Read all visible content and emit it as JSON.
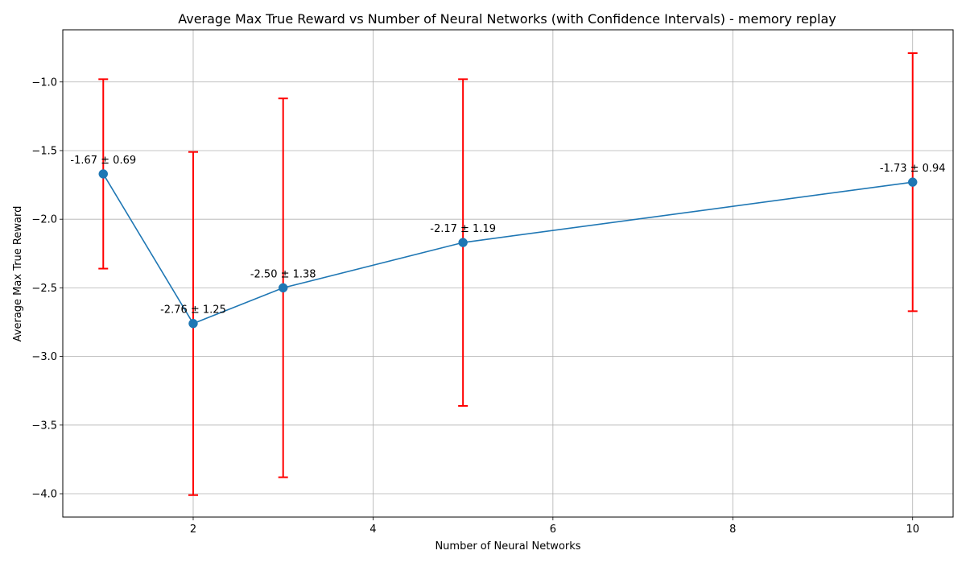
{
  "chart_data": {
    "type": "line",
    "title": "Average Max True Reward vs Number of Neural Networks (with Confidence Intervals) - memory replay",
    "xlabel": "Number of Neural Networks",
    "ylabel": "Average Max True Reward",
    "xlim": [
      0.55,
      10.45
    ],
    "ylim": [
      -4.17,
      -0.62
    ],
    "xticks": [
      2,
      4,
      6,
      8,
      10
    ],
    "xtick_labels": [
      "2",
      "4",
      "6",
      "8",
      "10"
    ],
    "yticks": [
      -4.0,
      -3.5,
      -3.0,
      -2.5,
      -2.0,
      -1.5,
      -1.0
    ],
    "ytick_labels": [
      "−4.0",
      "−3.5",
      "−3.0",
      "−2.5",
      "−2.0",
      "−1.5",
      "−1.0"
    ],
    "grid": true,
    "series": [
      {
        "x": [
          1,
          2,
          3,
          5,
          10
        ],
        "y": [
          -1.67,
          -2.76,
          -2.5,
          -2.17,
          -1.73
        ],
        "ci": [
          0.69,
          1.25,
          1.38,
          1.19,
          0.94
        ],
        "labels": [
          "-1.67 ± 0.69",
          "-2.76 ± 1.25",
          "-2.50 ± 1.38",
          "-2.17 ± 1.19",
          "-1.73 ± 0.94"
        ]
      }
    ],
    "colors": {
      "line": "#1f77b4",
      "marker": "#1f77b4",
      "errorbar": "#ff0000",
      "grid": "#b0b0b0",
      "axes": "#000000"
    }
  }
}
